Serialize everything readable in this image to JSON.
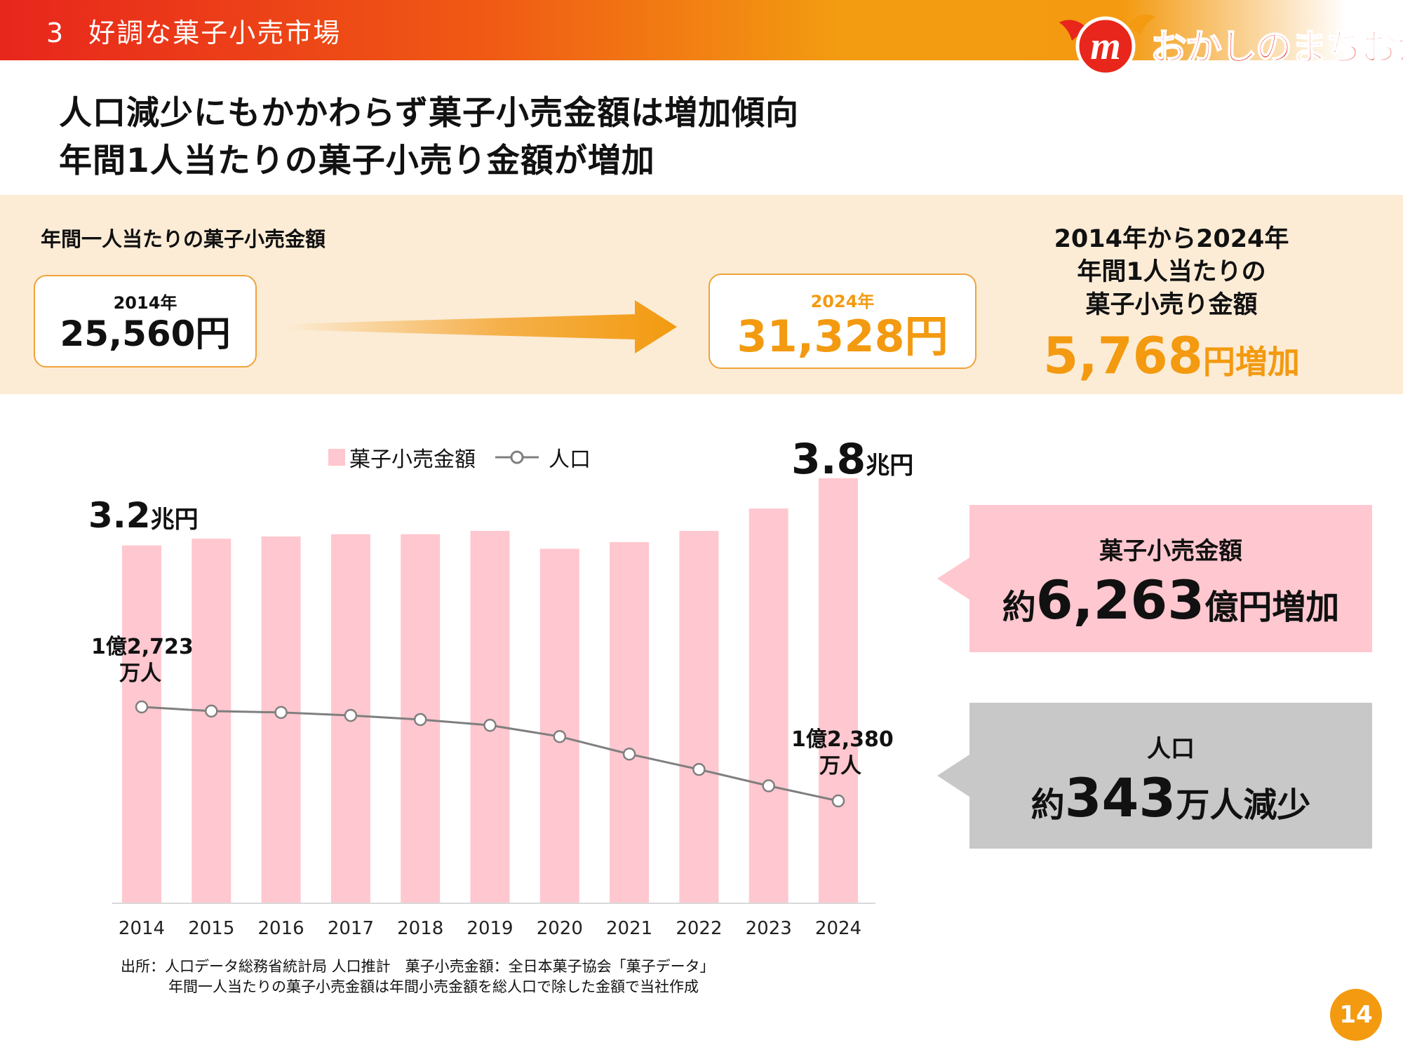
{
  "header": {
    "section_number": "3",
    "section_title": "好調な菓子小売市場",
    "logo_text": "おかしのまちおか",
    "colors": {
      "bar_red": "#e8261c",
      "bar_orange": "#f39c12"
    }
  },
  "headline": {
    "line1": "人口減少にもかかわらず菓子小売金額は増加傾向",
    "line2": "年間1人当たりの菓子小売り金額が増加"
  },
  "summary": {
    "title": "年間一人当たりの菓子小売金額",
    "from_year": "2014年",
    "from_amount": "25,560円",
    "to_year": "2024年",
    "to_amount": "31,328円",
    "right_line1": "2014年から2024年",
    "right_line2": "年間1人当たりの",
    "right_line3": "菓子小売り金額",
    "increase_number": "5,768",
    "increase_unit": "円増加",
    "accent": "#f39a10"
  },
  "chart_data": {
    "type": "bar",
    "categories": [
      "2014",
      "2015",
      "2016",
      "2017",
      "2018",
      "2019",
      "2020",
      "2021",
      "2022",
      "2023",
      "2024"
    ],
    "series": [
      {
        "name": "菓子小売金額",
        "kind": "bar",
        "unit": "兆円",
        "color": "#ffc7cf",
        "values": [
          3.2,
          3.26,
          3.28,
          3.3,
          3.3,
          3.33,
          3.17,
          3.23,
          3.33,
          3.53,
          3.8
        ]
      },
      {
        "name": "人口",
        "kind": "line",
        "unit": "万人",
        "color": "#7f7f7f",
        "values": [
          12723,
          12708,
          12703,
          12692,
          12677,
          12656,
          12615,
          12551,
          12495,
          12435,
          12380
        ]
      }
    ],
    "legend": {
      "position": "top",
      "labels": [
        "菓子小売金額",
        "人口"
      ]
    },
    "bar_callouts": {
      "first_value": "3.2",
      "last_value": "3.8",
      "unit": "兆円"
    },
    "line_callouts": {
      "first_line1": "1億2,723",
      "first_line2": "万人",
      "last_line1": "1億2,380",
      "last_line2": "万人"
    },
    "ylim_bars": [
      0,
      3.8
    ],
    "ylim_line": [
      12380,
      12723
    ],
    "grid": false
  },
  "source": {
    "line1": "出所：人口データ総務省統計局 人口推計　菓子小売金額：全日本菓子協会「菓子データ」",
    "line2": "年間一人当たりの菓子小売金額は年間小売金額を総人口で除した金額で当社作成"
  },
  "callouts": {
    "sales_title": "菓子小売金額",
    "sales_prefix": "約",
    "sales_number": "6,263",
    "sales_suffix": "億円増加",
    "sales_color": "#ffc7cf",
    "pop_title": "人口",
    "pop_prefix": "約",
    "pop_number": "343",
    "pop_suffix": "万人減少",
    "pop_color": "#c8c8c8"
  },
  "page_number": "14"
}
